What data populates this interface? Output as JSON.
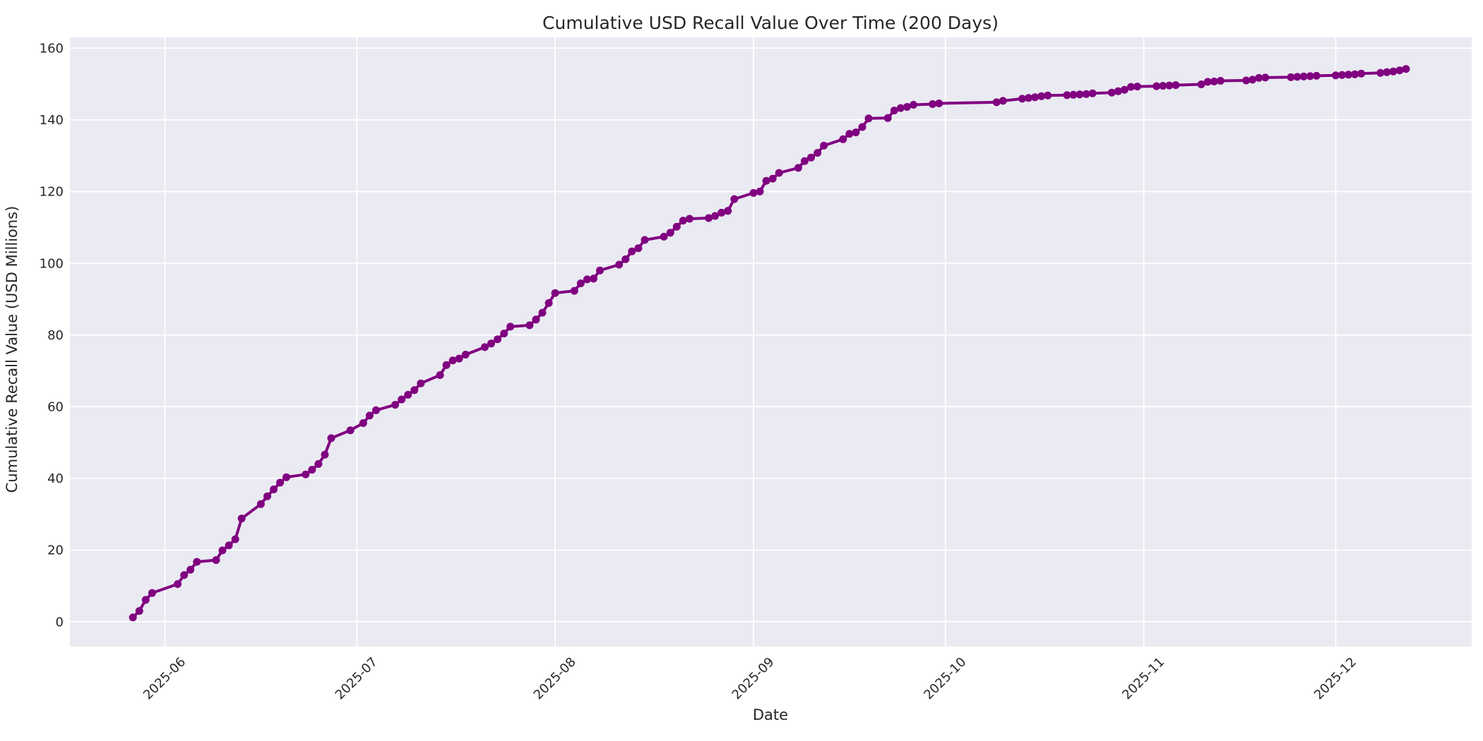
{
  "chart_data": {
    "type": "line",
    "title": "Cumulative USD Recall Value Over Time (200 Days)",
    "xlabel": "Date",
    "ylabel": "Cumulative Recall Value (USD Millions)",
    "legend": "none",
    "grid": true,
    "marker": "circle",
    "x_ticks": [
      "2025-06",
      "2025-07",
      "2025-08",
      "2025-09",
      "2025-10",
      "2025-11",
      "2025-12"
    ],
    "y_ticks": [
      0,
      20,
      40,
      60,
      80,
      100,
      120,
      140,
      160
    ],
    "xlim": [
      "2025-05-17",
      "2025-12-22"
    ],
    "ylim": [
      -6.9,
      163.0
    ],
    "colors": {
      "line": "#800080",
      "plot_background": "#eaeaf2",
      "grid": "#ffffff",
      "text": "#262626",
      "figure_background": "#ffffff"
    },
    "x": [
      "2025-05-27",
      "2025-05-28",
      "2025-05-29",
      "2025-05-30",
      "2025-06-03",
      "2025-06-04",
      "2025-06-05",
      "2025-06-06",
      "2025-06-09",
      "2025-06-10",
      "2025-06-11",
      "2025-06-12",
      "2025-06-13",
      "2025-06-16",
      "2025-06-17",
      "2025-06-18",
      "2025-06-19",
      "2025-06-20",
      "2025-06-23",
      "2025-06-24",
      "2025-06-25",
      "2025-06-26",
      "2025-06-27",
      "2025-06-30",
      "2025-07-02",
      "2025-07-03",
      "2025-07-04",
      "2025-07-07",
      "2025-07-08",
      "2025-07-09",
      "2025-07-10",
      "2025-07-11",
      "2025-07-14",
      "2025-07-15",
      "2025-07-16",
      "2025-07-17",
      "2025-07-18",
      "2025-07-21",
      "2025-07-22",
      "2025-07-23",
      "2025-07-24",
      "2025-07-25",
      "2025-07-28",
      "2025-07-29",
      "2025-07-30",
      "2025-07-31",
      "2025-08-01",
      "2025-08-04",
      "2025-08-05",
      "2025-08-06",
      "2025-08-07",
      "2025-08-08",
      "2025-08-11",
      "2025-08-12",
      "2025-08-13",
      "2025-08-14",
      "2025-08-15",
      "2025-08-18",
      "2025-08-19",
      "2025-08-20",
      "2025-08-21",
      "2025-08-22",
      "2025-08-25",
      "2025-08-26",
      "2025-08-27",
      "2025-08-28",
      "2025-08-29",
      "2025-09-01",
      "2025-09-02",
      "2025-09-03",
      "2025-09-04",
      "2025-09-05",
      "2025-09-08",
      "2025-09-09",
      "2025-09-10",
      "2025-09-11",
      "2025-09-12",
      "2025-09-15",
      "2025-09-16",
      "2025-09-17",
      "2025-09-18",
      "2025-09-19",
      "2025-09-22",
      "2025-09-23",
      "2025-09-24",
      "2025-09-25",
      "2025-09-26",
      "2025-09-29",
      "2025-09-30",
      "2025-10-09",
      "2025-10-10",
      "2025-10-13",
      "2025-10-14",
      "2025-10-15",
      "2025-10-16",
      "2025-10-17",
      "2025-10-20",
      "2025-10-21",
      "2025-10-22",
      "2025-10-23",
      "2025-10-24",
      "2025-10-27",
      "2025-10-28",
      "2025-10-29",
      "2025-10-30",
      "2025-10-31",
      "2025-11-03",
      "2025-11-04",
      "2025-11-05",
      "2025-11-06",
      "2025-11-10",
      "2025-11-11",
      "2025-11-12",
      "2025-11-13",
      "2025-11-17",
      "2025-11-18",
      "2025-11-19",
      "2025-11-20",
      "2025-11-24",
      "2025-11-25",
      "2025-11-26",
      "2025-11-27",
      "2025-11-28",
      "2025-12-01",
      "2025-12-02",
      "2025-12-03",
      "2025-12-04",
      "2025-12-05",
      "2025-12-08",
      "2025-12-09",
      "2025-12-10",
      "2025-12-11",
      "2025-12-12"
    ],
    "series": [
      {
        "name": "cumulative-recall-value-usd-millions",
        "color": "#800080",
        "values": [
          1.2,
          3.0,
          6.1,
          8.0,
          10.5,
          13.0,
          14.5,
          16.7,
          17.2,
          19.9,
          21.3,
          23.0,
          28.8,
          32.8,
          35.0,
          36.9,
          38.8,
          40.3,
          41.1,
          42.4,
          44.0,
          46.6,
          51.2,
          53.4,
          55.4,
          57.5,
          59.0,
          60.5,
          62.0,
          63.3,
          64.6,
          66.5,
          68.8,
          71.6,
          72.9,
          73.4,
          74.5,
          76.6,
          77.6,
          78.8,
          80.4,
          82.3,
          82.7,
          84.3,
          86.2,
          88.9,
          91.7,
          92.3,
          94.4,
          95.5,
          95.7,
          98.0,
          99.6,
          101.1,
          103.3,
          104.2,
          106.5,
          107.4,
          108.5,
          110.2,
          111.9,
          112.4,
          112.6,
          113.2,
          114.1,
          114.6,
          117.9,
          119.6,
          120.0,
          123.0,
          123.6,
          125.2,
          126.6,
          128.5,
          129.5,
          130.8,
          132.8,
          134.6,
          136.1,
          136.5,
          138.0,
          140.4,
          140.5,
          142.6,
          143.3,
          143.6,
          144.2,
          144.4,
          144.6,
          144.9,
          145.3,
          145.9,
          146.1,
          146.3,
          146.6,
          146.8,
          146.9,
          147.0,
          147.1,
          147.2,
          147.4,
          147.6,
          148.0,
          148.4,
          149.2,
          149.3,
          149.4,
          149.5,
          149.6,
          149.7,
          149.9,
          150.6,
          150.7,
          150.9,
          151.0,
          151.2,
          151.7,
          151.8,
          151.9,
          152.0,
          152.1,
          152.2,
          152.3,
          152.4,
          152.5,
          152.6,
          152.7,
          152.9,
          153.1,
          153.3,
          153.5,
          153.8,
          154.2
        ]
      }
    ]
  }
}
